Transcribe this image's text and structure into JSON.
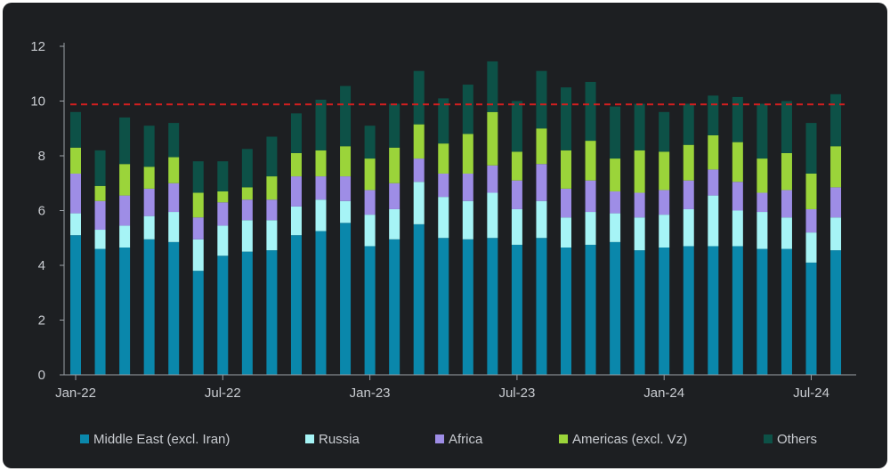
{
  "chart_data": {
    "type": "bar",
    "stacked": true,
    "x_tick_labels": [
      "Jan-22",
      "Jul-22",
      "Jan-23",
      "Jul-23",
      "Jan-24",
      "Jul-24"
    ],
    "ylim": [
      0,
      12
    ],
    "y_ticks": [
      0,
      2,
      4,
      6,
      8,
      10,
      12
    ],
    "reference_line": {
      "value": 9.88,
      "color": "#d21f1f",
      "style": "dashed"
    },
    "legend_position": "bottom",
    "grid": false,
    "series": [
      {
        "name": "Middle East (excl. Iran)",
        "color": "#0a87ab",
        "values": [
          5.1,
          4.6,
          4.65,
          4.95,
          4.85,
          3.8,
          4.35,
          4.5,
          4.55,
          5.1,
          5.25,
          5.55,
          4.7,
          4.95,
          5.5,
          5.0,
          4.95,
          5.0,
          4.75,
          5.0,
          4.65,
          4.75,
          4.85,
          4.55,
          4.65,
          4.7,
          4.7,
          4.7,
          4.6,
          4.6,
          4.1,
          4.55
        ]
      },
      {
        "name": "Russia",
        "color": "#a6f4f6",
        "values": [
          0.8,
          0.7,
          0.8,
          0.85,
          1.1,
          1.15,
          1.1,
          1.15,
          1.1,
          1.05,
          1.15,
          0.8,
          1.15,
          1.1,
          1.55,
          1.5,
          1.4,
          1.65,
          1.3,
          1.35,
          1.1,
          1.2,
          1.05,
          1.2,
          1.2,
          1.35,
          1.85,
          1.3,
          1.35,
          1.15,
          1.1,
          1.2
        ]
      },
      {
        "name": "Africa",
        "color": "#9e8de6",
        "values": [
          1.45,
          1.05,
          1.1,
          1.0,
          1.05,
          0.8,
          0.85,
          0.75,
          0.75,
          1.1,
          0.85,
          0.9,
          0.9,
          0.95,
          0.85,
          0.85,
          1.0,
          1.0,
          1.05,
          1.35,
          1.05,
          1.15,
          0.8,
          0.9,
          0.9,
          1.05,
          0.95,
          1.05,
          0.7,
          1.0,
          0.85,
          1.1
        ]
      },
      {
        "name": "Americas (excl. Vz)",
        "color": "#9bd43a",
        "values": [
          0.95,
          0.55,
          1.15,
          0.8,
          0.95,
          0.9,
          0.4,
          0.45,
          0.85,
          0.85,
          0.95,
          1.1,
          1.15,
          1.3,
          1.25,
          1.1,
          1.45,
          1.95,
          1.05,
          1.3,
          1.4,
          1.45,
          1.2,
          1.55,
          1.4,
          1.3,
          1.25,
          1.45,
          1.25,
          1.35,
          1.3,
          1.5
        ]
      },
      {
        "name": "Others",
        "color": "#0d5147",
        "values": [
          1.3,
          1.3,
          1.7,
          1.5,
          1.25,
          1.15,
          1.1,
          1.4,
          1.45,
          1.45,
          1.85,
          2.2,
          1.2,
          1.6,
          1.95,
          1.65,
          1.8,
          1.85,
          1.85,
          2.1,
          2.3,
          2.15,
          1.9,
          1.7,
          1.45,
          1.5,
          1.45,
          1.65,
          2.0,
          1.9,
          1.85,
          1.9
        ]
      }
    ]
  }
}
